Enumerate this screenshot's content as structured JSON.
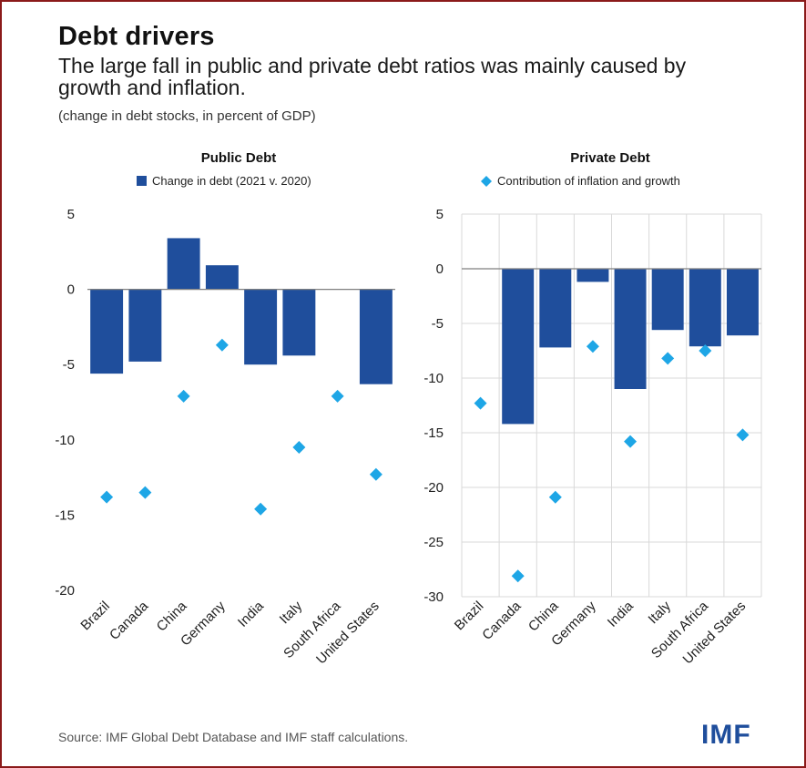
{
  "header": {
    "title": "Debt drivers",
    "subtitle": "The large fall in public and private debt ratios was mainly caused by growth and inflation.",
    "units": "(change in debt stocks, in percent of GDP)"
  },
  "footer": {
    "source": "Source: IMF Global Debt Database and IMF staff calculations.",
    "logo": "IMF"
  },
  "colors": {
    "bar": "#1f4e9c",
    "diamond": "#1ea6e6",
    "grid": "#d9d9d9",
    "zero_line": "#7f7f7f"
  },
  "chart_data": [
    {
      "type": "bar",
      "title": "Public Debt",
      "legend": {
        "label": "Change in debt (2021 v. 2020)",
        "marker": "bar-square"
      },
      "categories": [
        "Brazil",
        "Canada",
        "China",
        "Germany",
        "India",
        "Italy",
        "South Africa",
        "United States"
      ],
      "series": [
        {
          "name": "Change in debt (2021 v. 2020)",
          "kind": "bar",
          "values": [
            -5.6,
            -4.8,
            3.4,
            1.6,
            -5.0,
            -4.4,
            0,
            -6.3
          ]
        },
        {
          "name": "Contribution of inflation and growth",
          "kind": "diamond",
          "values": [
            -13.8,
            -13.5,
            -7.1,
            -3.7,
            -14.6,
            -10.5,
            -7.1,
            -12.3
          ]
        }
      ],
      "yticks": [
        5,
        0,
        -5,
        -10,
        -15,
        -20
      ],
      "ylim": [
        -20,
        5
      ],
      "grid": false
    },
    {
      "type": "bar",
      "title": "Private Debt",
      "legend": {
        "label": "Contribution of inflation and growth",
        "marker": "diamond"
      },
      "categories": [
        "Brazil",
        "Canada",
        "China",
        "Germany",
        "India",
        "Italy",
        "South Africa",
        "United States"
      ],
      "series": [
        {
          "name": "Change in debt (2021 v. 2020)",
          "kind": "bar",
          "values": [
            0,
            -14.2,
            -7.2,
            -1.2,
            -11.0,
            -5.6,
            -7.1,
            -6.1
          ]
        },
        {
          "name": "Contribution of inflation and growth",
          "kind": "diamond",
          "values": [
            -12.3,
            -28.1,
            -20.9,
            -7.1,
            -15.8,
            -8.2,
            -7.5,
            -15.2
          ]
        }
      ],
      "yticks": [
        5,
        0,
        -5,
        -10,
        -15,
        -20,
        -25,
        -30
      ],
      "ylim": [
        -30,
        5
      ],
      "grid": true
    }
  ]
}
